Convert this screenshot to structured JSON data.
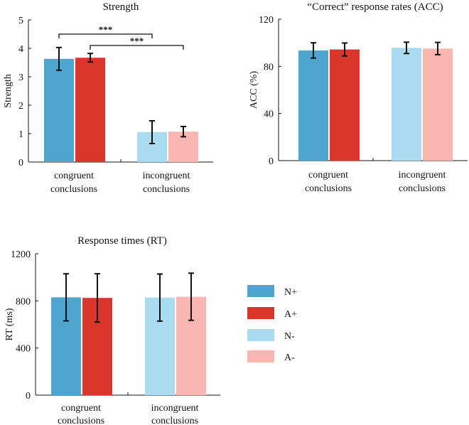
{
  "legend": [
    {
      "label": "N+",
      "color": "#4ea6d0"
    },
    {
      "label": "A+",
      "color": "#d9372c"
    },
    {
      "label": "N-",
      "color": "#a9dcf0"
    },
    {
      "label": "A-",
      "color": "#fbb6b2"
    }
  ],
  "chart_data": [
    {
      "type": "bar",
      "title": "Strength",
      "xlabel": "",
      "ylabel": "Strength",
      "ylim": [
        0,
        5
      ],
      "yticks": [
        "0",
        "1",
        "2",
        "3",
        "4",
        "5"
      ],
      "categories": [
        {
          "line1": "congruent",
          "line2": "conclusions"
        },
        {
          "line1": "incongruent",
          "line2": "conclusions"
        }
      ],
      "bars": [
        {
          "series": "N+",
          "group": 0,
          "value": 3.63,
          "err": 0.4
        },
        {
          "series": "A+",
          "group": 0,
          "value": 3.67,
          "err": 0.15
        },
        {
          "series": "N-",
          "group": 1,
          "value": 1.05,
          "err": 0.4
        },
        {
          "series": "A-",
          "group": 1,
          "value": 1.07,
          "err": 0.18
        }
      ],
      "significance": [
        {
          "from": "N+",
          "to": "N-",
          "label": "***",
          "y": 4.5
        },
        {
          "from": "A+",
          "to": "A-",
          "label": "***",
          "y": 4.1
        }
      ]
    },
    {
      "type": "bar",
      "title": "“Correct” response rates (ACC)",
      "xlabel": "",
      "ylabel": "ACC (%)",
      "ylim": [
        0,
        120
      ],
      "yticks": [
        "0",
        "40",
        "80",
        "120"
      ],
      "categories": [
        {
          "line1": "congruent",
          "line2": "conclusions"
        },
        {
          "line1": "incongruent",
          "line2": "conclusions"
        }
      ],
      "bars": [
        {
          "series": "N+",
          "group": 0,
          "value": 93.5,
          "err": 6.5
        },
        {
          "series": "A+",
          "group": 0,
          "value": 94.3,
          "err": 5.5
        },
        {
          "series": "N-",
          "group": 1,
          "value": 95.7,
          "err": 4.8
        },
        {
          "series": "A-",
          "group": 1,
          "value": 95.1,
          "err": 5.2
        }
      ],
      "significance": []
    },
    {
      "type": "bar",
      "title": "Response times (RT)",
      "xlabel": "",
      "ylabel": "RT (ms)",
      "ylim": [
        0,
        1200
      ],
      "yticks": [
        "0",
        "400",
        "800",
        "1200"
      ],
      "categories": [
        {
          "line1": "congruent",
          "line2": "conclusions"
        },
        {
          "line1": "incongruent",
          "line2": "conclusions"
        }
      ],
      "bars": [
        {
          "series": "N+",
          "group": 0,
          "value": 830,
          "err": 200
        },
        {
          "series": "A+",
          "group": 0,
          "value": 825,
          "err": 205
        },
        {
          "series": "N-",
          "group": 1,
          "value": 828,
          "err": 200
        },
        {
          "series": "A-",
          "group": 1,
          "value": 835,
          "err": 200
        }
      ],
      "significance": []
    }
  ]
}
